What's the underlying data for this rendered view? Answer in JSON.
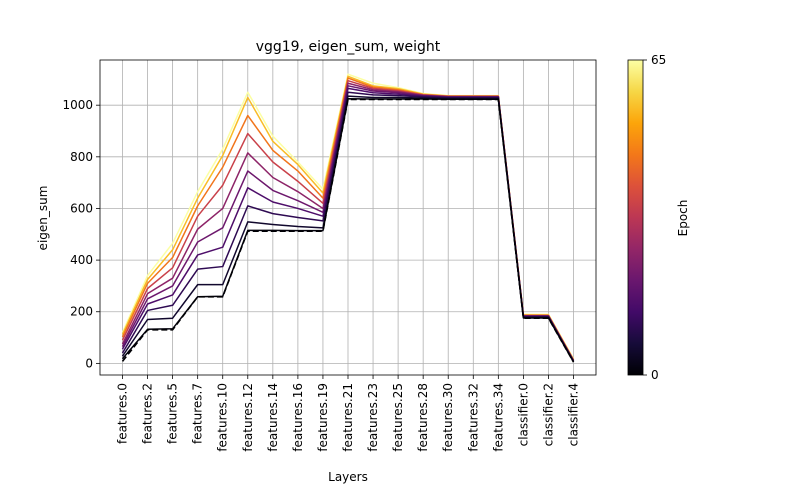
{
  "chart_data": {
    "type": "line",
    "title": "vgg19, eigen_sum, weight",
    "xlabel": "Layers",
    "ylabel": "eigen_sum",
    "categories": [
      "features.0",
      "features.2",
      "features.5",
      "features.7",
      "features.10",
      "features.12",
      "features.14",
      "features.16",
      "features.19",
      "features.21",
      "features.23",
      "features.25",
      "features.28",
      "features.30",
      "features.32",
      "features.34",
      "classifier.0",
      "classifier.2",
      "classifier.4"
    ],
    "ylim": [
      -45,
      1175
    ],
    "yticks": [
      0,
      200,
      400,
      600,
      800,
      1000
    ],
    "grid": true,
    "colormap": "inferno",
    "colorbar": {
      "label": "Epoch",
      "min_label": "0",
      "max_label": "65",
      "min": 0,
      "max": 65
    },
    "series": [
      {
        "epoch": 0,
        "style": "dashed",
        "values": [
          8,
          130,
          130,
          258,
          258,
          512,
          512,
          512,
          512,
          1022,
          1022,
          1022,
          1022,
          1022,
          1022,
          1022,
          175,
          175,
          5
        ]
      },
      {
        "epoch": 1,
        "values": [
          18,
          132,
          134,
          258,
          260,
          515,
          515,
          514,
          514,
          1025,
          1024,
          1024,
          1024,
          1023,
          1023,
          1023,
          176,
          176,
          6
        ]
      },
      {
        "epoch": 5,
        "values": [
          28,
          170,
          175,
          305,
          305,
          548,
          538,
          530,
          525,
          1035,
          1030,
          1030,
          1028,
          1026,
          1026,
          1026,
          178,
          178,
          7
        ]
      },
      {
        "epoch": 10,
        "values": [
          40,
          205,
          225,
          365,
          375,
          610,
          580,
          565,
          552,
          1050,
          1040,
          1037,
          1032,
          1029,
          1029,
          1029,
          180,
          180,
          8
        ]
      },
      {
        "epoch": 15,
        "values": [
          55,
          230,
          265,
          420,
          450,
          680,
          625,
          600,
          570,
          1065,
          1048,
          1043,
          1035,
          1031,
          1031,
          1031,
          182,
          182,
          9
        ]
      },
      {
        "epoch": 20,
        "values": [
          65,
          250,
          300,
          470,
          525,
          745,
          670,
          630,
          585,
          1075,
          1055,
          1048,
          1037,
          1032,
          1032,
          1032,
          183,
          183,
          10
        ]
      },
      {
        "epoch": 25,
        "values": [
          75,
          270,
          330,
          520,
          600,
          815,
          720,
          665,
          600,
          1085,
          1060,
          1052,
          1038,
          1033,
          1033,
          1033,
          184,
          184,
          11
        ]
      },
      {
        "epoch": 35,
        "values": [
          90,
          290,
          370,
          570,
          690,
          890,
          780,
          705,
          620,
          1095,
          1065,
          1056,
          1040,
          1034,
          1034,
          1034,
          185,
          185,
          12
        ]
      },
      {
        "epoch": 45,
        "values": [
          102,
          310,
          410,
          610,
          760,
          960,
          825,
          745,
          640,
          1105,
          1070,
          1060,
          1041,
          1035,
          1035,
          1035,
          186,
          186,
          13
        ]
      },
      {
        "epoch": 55,
        "values": [
          112,
          325,
          440,
          640,
          805,
          1030,
          860,
          770,
          660,
          1112,
          1075,
          1064,
          1043,
          1036,
          1036,
          1036,
          188,
          188,
          15
        ]
      },
      {
        "epoch": 65,
        "values": [
          120,
          340,
          465,
          665,
          830,
          1050,
          880,
          780,
          675,
          1120,
          1085,
          1068,
          1045,
          1037,
          1037,
          1037,
          190,
          190,
          18
        ]
      }
    ]
  }
}
